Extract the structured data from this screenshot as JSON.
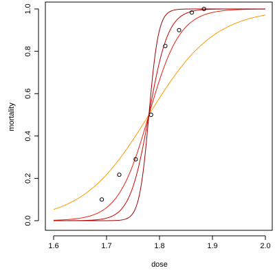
{
  "chart_data": {
    "type": "scatter",
    "title": "",
    "xlabel": "dose",
    "ylabel": "mortality",
    "xlim": [
      1.6,
      2.0
    ],
    "ylim": [
      0.0,
      1.0
    ],
    "grid": false,
    "x_ticks": [
      1.6,
      1.7,
      1.8,
      1.9,
      2.0
    ],
    "x_tick_labels": [
      "1.6",
      "1.7",
      "1.8",
      "1.9",
      "2.0"
    ],
    "y_ticks": [
      0.0,
      0.2,
      0.4,
      0.6,
      0.8,
      1.0
    ],
    "y_tick_labels": [
      "0.0",
      "0.2",
      "0.4",
      "0.6",
      "0.8",
      "1.0"
    ],
    "points": [
      {
        "x": 1.691,
        "y": 0.1
      },
      {
        "x": 1.724,
        "y": 0.217
      },
      {
        "x": 1.755,
        "y": 0.29
      },
      {
        "x": 1.784,
        "y": 0.5
      },
      {
        "x": 1.811,
        "y": 0.825
      },
      {
        "x": 1.837,
        "y": 0.9
      },
      {
        "x": 1.861,
        "y": 0.983
      },
      {
        "x": 1.884,
        "y": 1.0
      }
    ],
    "curves": [
      {
        "color": "#ff9900",
        "x0": 1.78,
        "slope": 16
      },
      {
        "color": "#e62010",
        "x0": 1.78,
        "slope": 34
      },
      {
        "color": "#cc0000",
        "x0": 1.78,
        "slope": 55
      },
      {
        "color": "#990000",
        "x0": 1.78,
        "slope": 110
      }
    ]
  }
}
